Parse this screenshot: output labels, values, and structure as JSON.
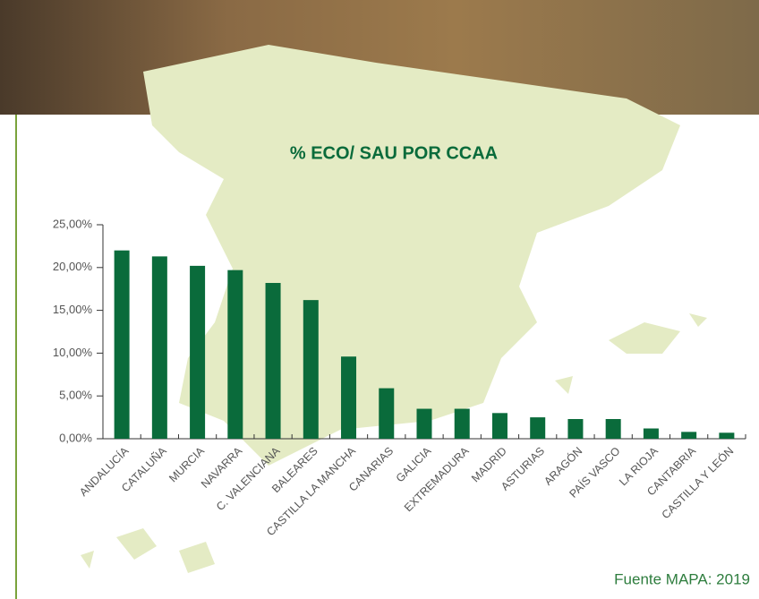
{
  "chart_data": {
    "type": "bar",
    "title": "% ECO/ SAU POR CCAA",
    "source": "Fuente MAPA: 2019",
    "categories": [
      "ANDALUCÍA",
      "CATALUÑA",
      "MURCIA",
      "NAVARRA",
      "C. VALENCIANA",
      "BALEARES",
      "CASTILLA LA MANCHA",
      "CANARIAS",
      "GALICIA",
      "EXTREMADURA",
      "MADRID",
      "ASTURIAS",
      "ARAGÓN",
      "PAÍS VASCO",
      "LA RIOJA",
      "CANTABRIA",
      "CASTILLA Y LEÓN"
    ],
    "values": [
      22.0,
      21.3,
      20.2,
      19.7,
      18.2,
      16.2,
      9.6,
      5.9,
      3.5,
      3.5,
      3.0,
      2.5,
      2.3,
      2.3,
      1.2,
      0.8,
      0.7
    ],
    "color": "#0a6b3b",
    "ylim": [
      0,
      25
    ],
    "yticks": [
      {
        "value": 0,
        "label": "0,00%"
      },
      {
        "value": 5,
        "label": "5,00%"
      },
      {
        "value": 10,
        "label": "10,00%"
      },
      {
        "value": 15,
        "label": "15,00%"
      },
      {
        "value": 20,
        "label": "20,00%"
      },
      {
        "value": 25,
        "label": "25,00%"
      }
    ]
  }
}
